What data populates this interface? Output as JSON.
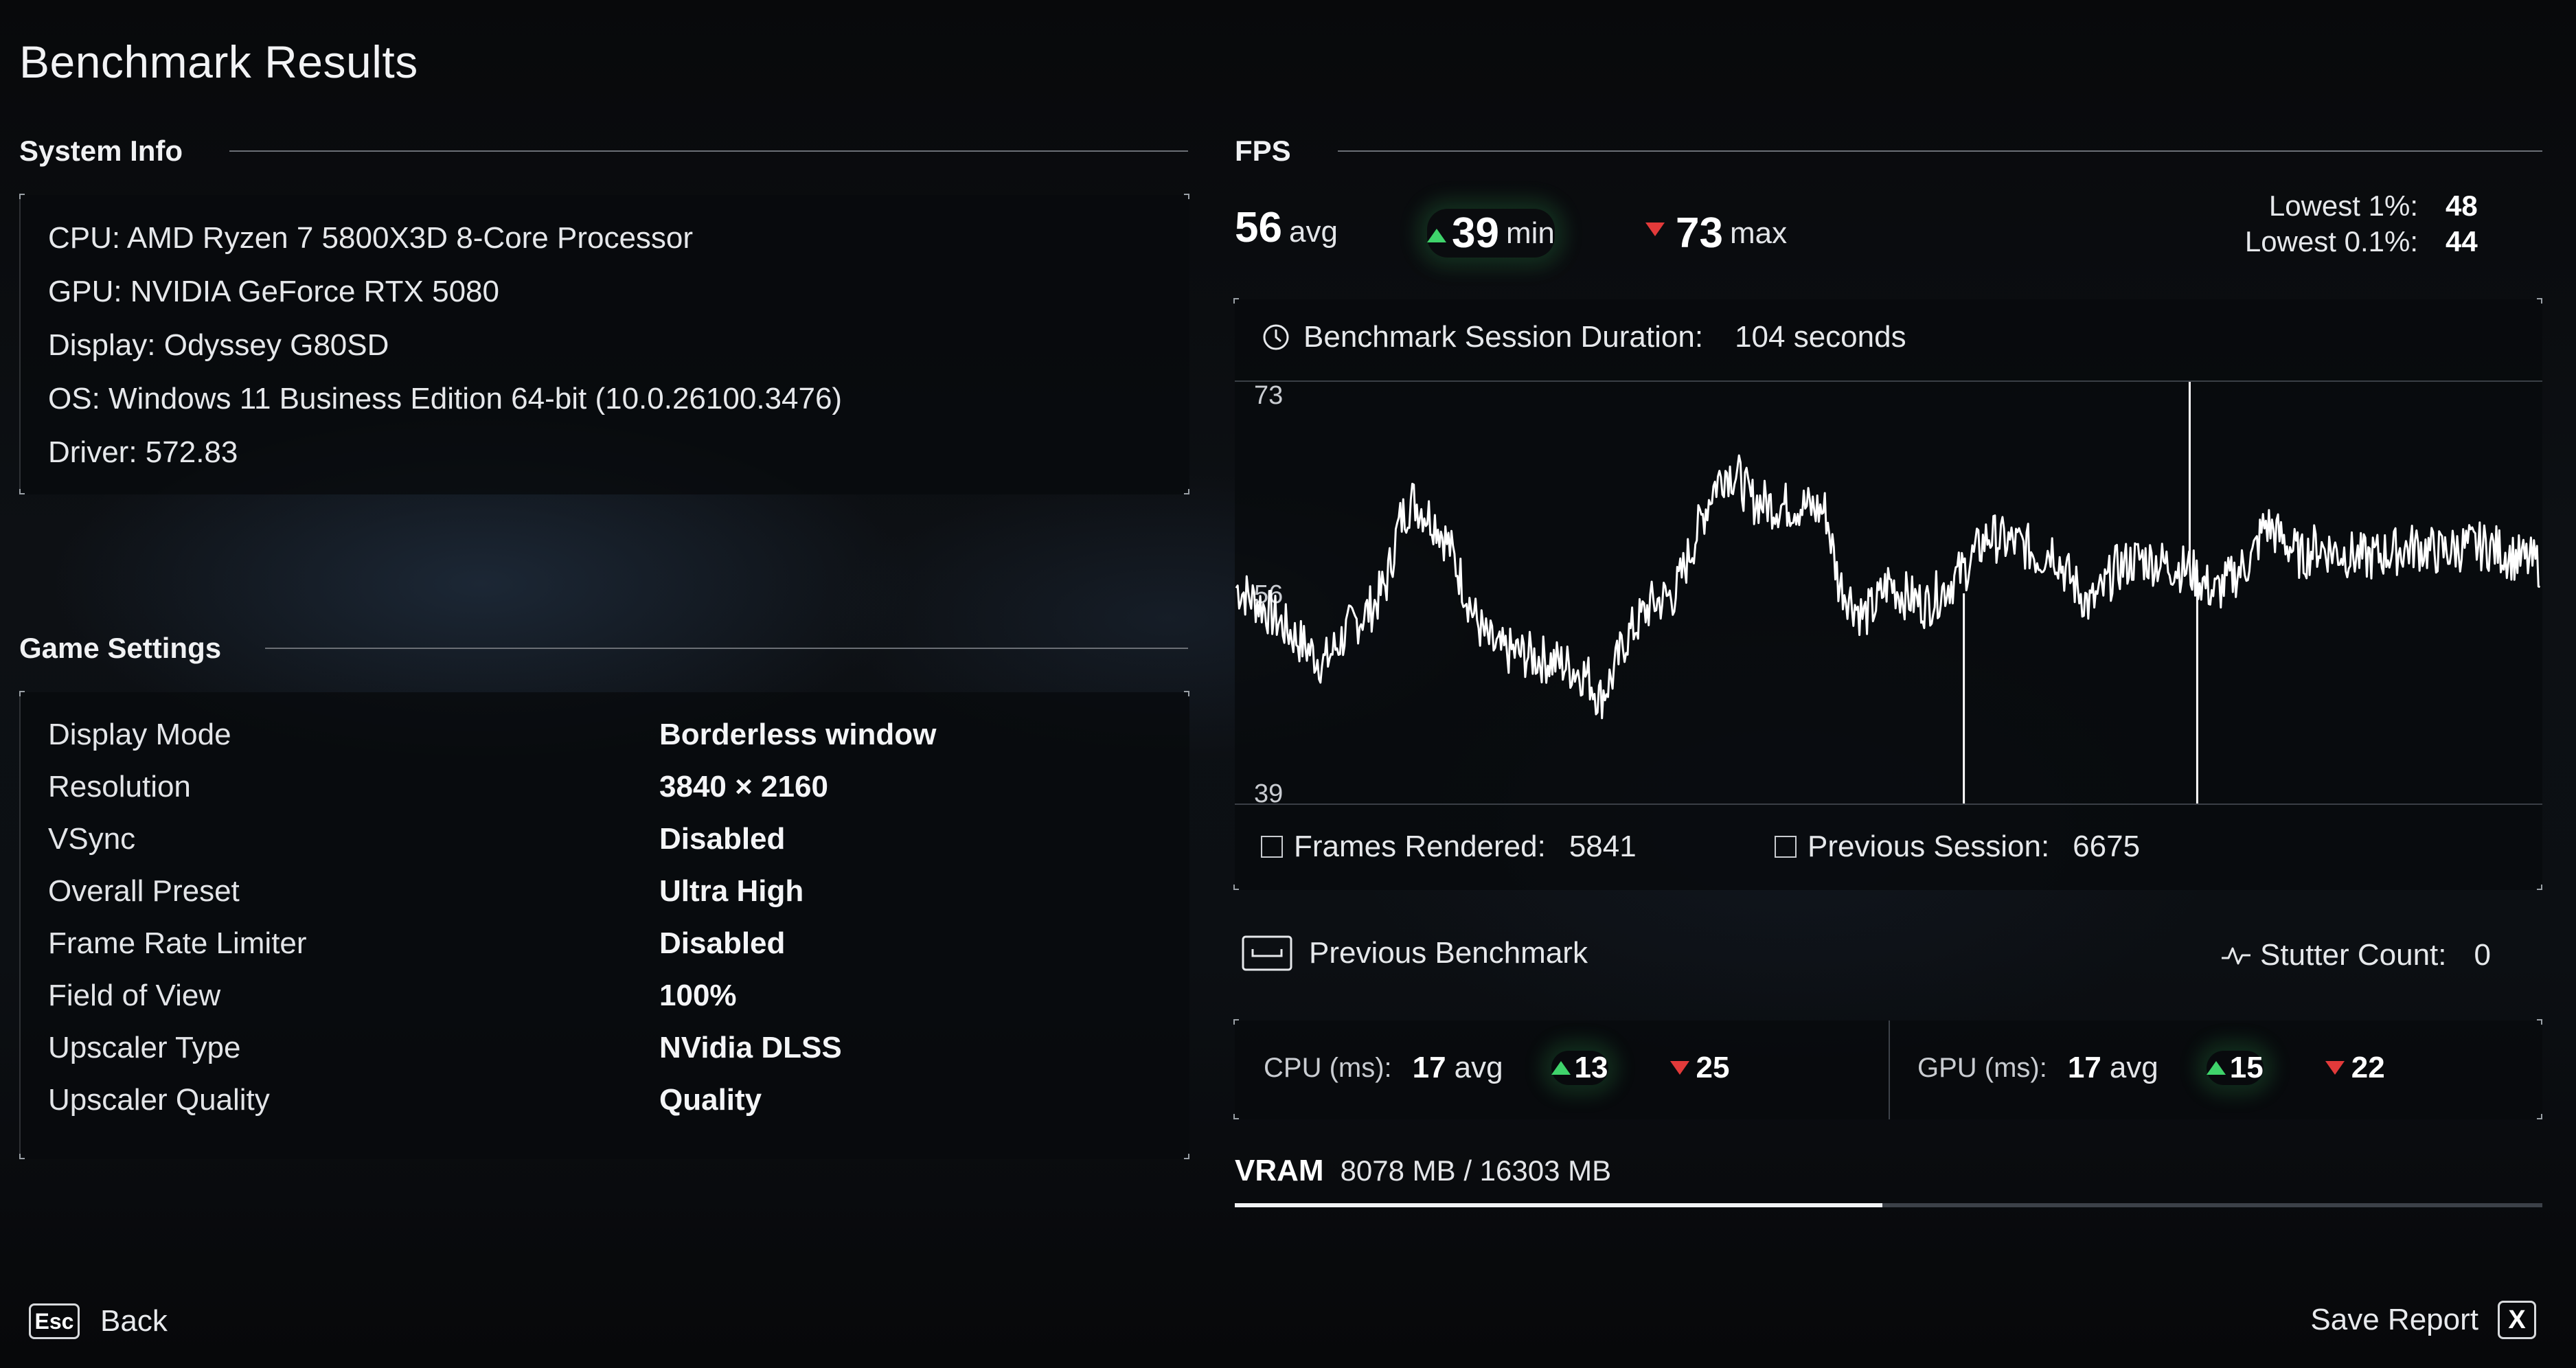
{
  "page": {
    "title": "Benchmark Results"
  },
  "system_info": {
    "heading": "System Info",
    "lines": [
      "CPU: AMD Ryzen 7 5800X3D 8-Core Processor",
      "GPU: NVIDIA GeForce RTX 5080",
      "Display: Odyssey G80SD",
      "OS: Windows 11 Business Edition 64-bit (10.0.26100.3476)",
      "Driver: 572.83"
    ]
  },
  "game_settings": {
    "heading": "Game Settings",
    "rows": [
      {
        "label": "Display Mode",
        "value": "Borderless window"
      },
      {
        "label": "Resolution",
        "value": "3840 × 2160"
      },
      {
        "label": "VSync",
        "value": "Disabled"
      },
      {
        "label": "Overall Preset",
        "value": "Ultra High"
      },
      {
        "label": "Frame Rate Limiter",
        "value": "Disabled"
      },
      {
        "label": "Field of View",
        "value": "100%"
      },
      {
        "label": "Upscaler Type",
        "value": "NVidia DLSS"
      },
      {
        "label": "Upscaler Quality",
        "value": "Quality"
      }
    ]
  },
  "fps": {
    "heading": "FPS",
    "avg": "56",
    "avg_unit": "avg",
    "min": "39",
    "min_unit": "min",
    "max": "73",
    "max_unit": "max",
    "lowest_1_label": "Lowest 1%:",
    "lowest_1": "48",
    "lowest_01_label": "Lowest 0.1%:",
    "lowest_01": "44",
    "duration_label": "Benchmark Session Duration:",
    "duration_value": "104 seconds",
    "frames_rendered_label": "Frames Rendered:",
    "frames_rendered": "5841",
    "previous_session_label": "Previous Session:",
    "previous_session": "6675",
    "previous_benchmark_label": "Previous Benchmark",
    "stutter_label": "Stutter Count:",
    "stutter_value": "0"
  },
  "chart_data": {
    "type": "line",
    "title": "",
    "xlabel": "",
    "ylabel": "",
    "ylim": [
      39,
      73
    ],
    "ytick_labels": [
      "73",
      "56",
      "39"
    ],
    "grid": false,
    "x_range_seconds": [
      0,
      104
    ],
    "series": [
      {
        "points": [
          [
            0,
            56.5
          ],
          [
            2,
            55
          ],
          [
            4,
            53
          ],
          [
            5,
            52
          ],
          [
            7,
            50
          ],
          [
            9,
            53
          ],
          [
            11,
            55
          ],
          [
            12,
            57
          ],
          [
            13,
            62
          ],
          [
            14,
            64
          ],
          [
            15,
            63
          ],
          [
            16,
            62
          ],
          [
            17,
            60
          ],
          [
            18,
            57
          ],
          [
            19,
            54
          ],
          [
            20,
            52
          ],
          [
            21,
            51
          ],
          [
            22,
            51
          ],
          [
            24,
            50.5
          ],
          [
            26,
            50
          ],
          [
            28,
            49
          ],
          [
            29,
            47
          ],
          [
            30,
            49
          ],
          [
            31,
            52
          ],
          [
            33,
            55
          ],
          [
            35,
            56
          ],
          [
            36,
            59
          ],
          [
            38,
            65
          ],
          [
            39,
            66.5
          ],
          [
            40,
            66
          ],
          [
            41,
            64
          ],
          [
            43,
            63.5
          ],
          [
            45,
            63.5
          ],
          [
            47,
            63
          ],
          [
            48,
            57
          ],
          [
            50,
            54
          ],
          [
            51,
            55
          ],
          [
            52,
            57
          ],
          [
            53,
            56
          ],
          [
            55,
            55
          ],
          [
            56,
            56
          ],
          [
            58,
            58
          ],
          [
            60,
            61
          ],
          [
            61,
            60.5
          ],
          [
            63,
            60
          ],
          [
            64,
            59
          ],
          [
            65,
            60
          ],
          [
            66,
            58
          ],
          [
            68,
            55
          ],
          [
            69,
            56
          ],
          [
            70,
            58
          ],
          [
            72,
            59
          ],
          [
            74,
            58.5
          ],
          [
            76,
            58
          ],
          [
            77,
            57
          ],
          [
            78,
            56
          ],
          [
            79,
            57
          ],
          [
            81,
            59
          ],
          [
            82,
            62
          ],
          [
            83,
            61
          ],
          [
            84,
            60
          ],
          [
            85,
            59
          ],
          [
            86,
            60
          ],
          [
            88,
            59.5
          ],
          [
            90,
            59
          ],
          [
            92,
            59.5
          ],
          [
            94,
            60
          ],
          [
            96,
            59.5
          ],
          [
            98,
            60
          ],
          [
            100,
            60
          ],
          [
            102,
            59
          ],
          [
            104,
            58.5
          ]
        ],
        "spikes": [
          {
            "t": 58,
            "value": 39
          },
          {
            "t": 76,
            "value": 73
          },
          {
            "t": 76.6,
            "value": 39
          }
        ]
      }
    ]
  },
  "cpu_ms": {
    "label": "CPU (ms):",
    "avg": "17",
    "avg_unit": "avg",
    "min": "13",
    "max": "25"
  },
  "gpu_ms": {
    "label": "GPU (ms):",
    "avg": "17",
    "avg_unit": "avg",
    "min": "15",
    "max": "22"
  },
  "vram": {
    "label": "VRAM",
    "text": "8078 MB / 16303 MB",
    "used_mb": 8078,
    "total_mb": 16303,
    "used_fraction": 0.4955
  },
  "footer": {
    "back_key": "Esc",
    "back_label": "Back",
    "save_label": "Save Report",
    "save_key": "X"
  }
}
